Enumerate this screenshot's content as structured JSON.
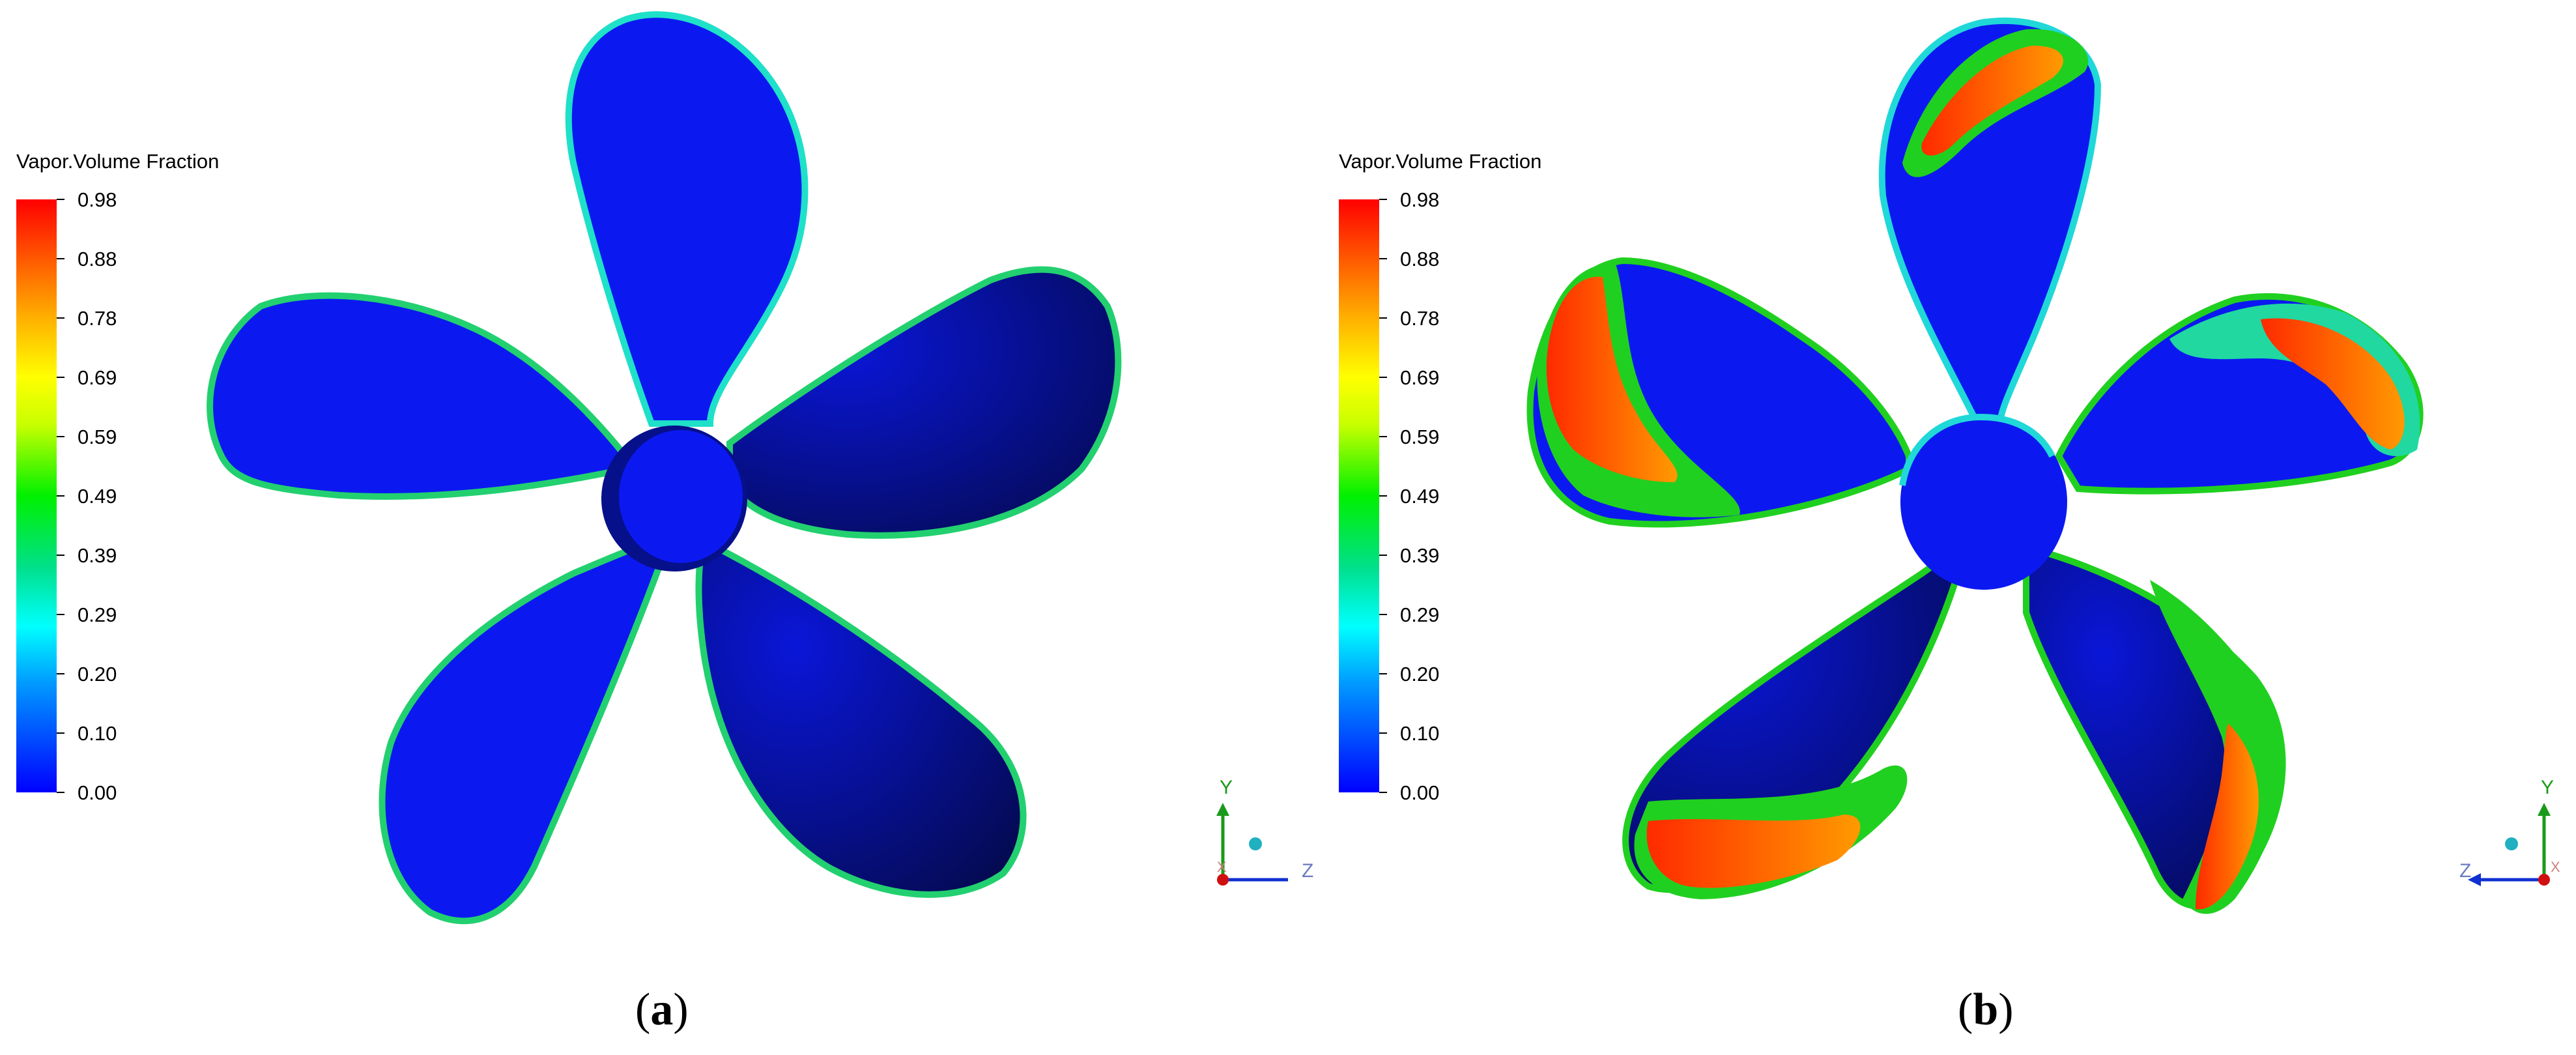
{
  "panels": [
    {
      "id": "a",
      "legend_title": "Vapor.Volume Fraction",
      "ticks": [
        "0.98",
        "0.88",
        "0.78",
        "0.69",
        "0.59",
        "0.49",
        "0.39",
        "0.29",
        "0.20",
        "0.10",
        "0.00"
      ],
      "label_open": "(",
      "label_letter": "a",
      "label_close": ")",
      "axes": {
        "y": "Y",
        "z": "Z",
        "x": "X"
      }
    },
    {
      "id": "b",
      "legend_title": "Vapor.Volume Fraction",
      "ticks": [
        "0.98",
        "0.88",
        "0.78",
        "0.69",
        "0.59",
        "0.49",
        "0.39",
        "0.29",
        "0.20",
        "0.10",
        "0.00"
      ],
      "label_open": "(",
      "label_letter": "b",
      "label_close": ")",
      "axes": {
        "y": "Y",
        "z": "Z",
        "x": "X"
      }
    }
  ],
  "colors": {
    "blade_blue": "#0b19f0",
    "blade_dark": "#050c6e",
    "vapor_red": "#ff2a00",
    "vapor_orange": "#ff9a00",
    "vapor_green": "#20d020",
    "vapor_cyan": "#20d8d8"
  }
}
